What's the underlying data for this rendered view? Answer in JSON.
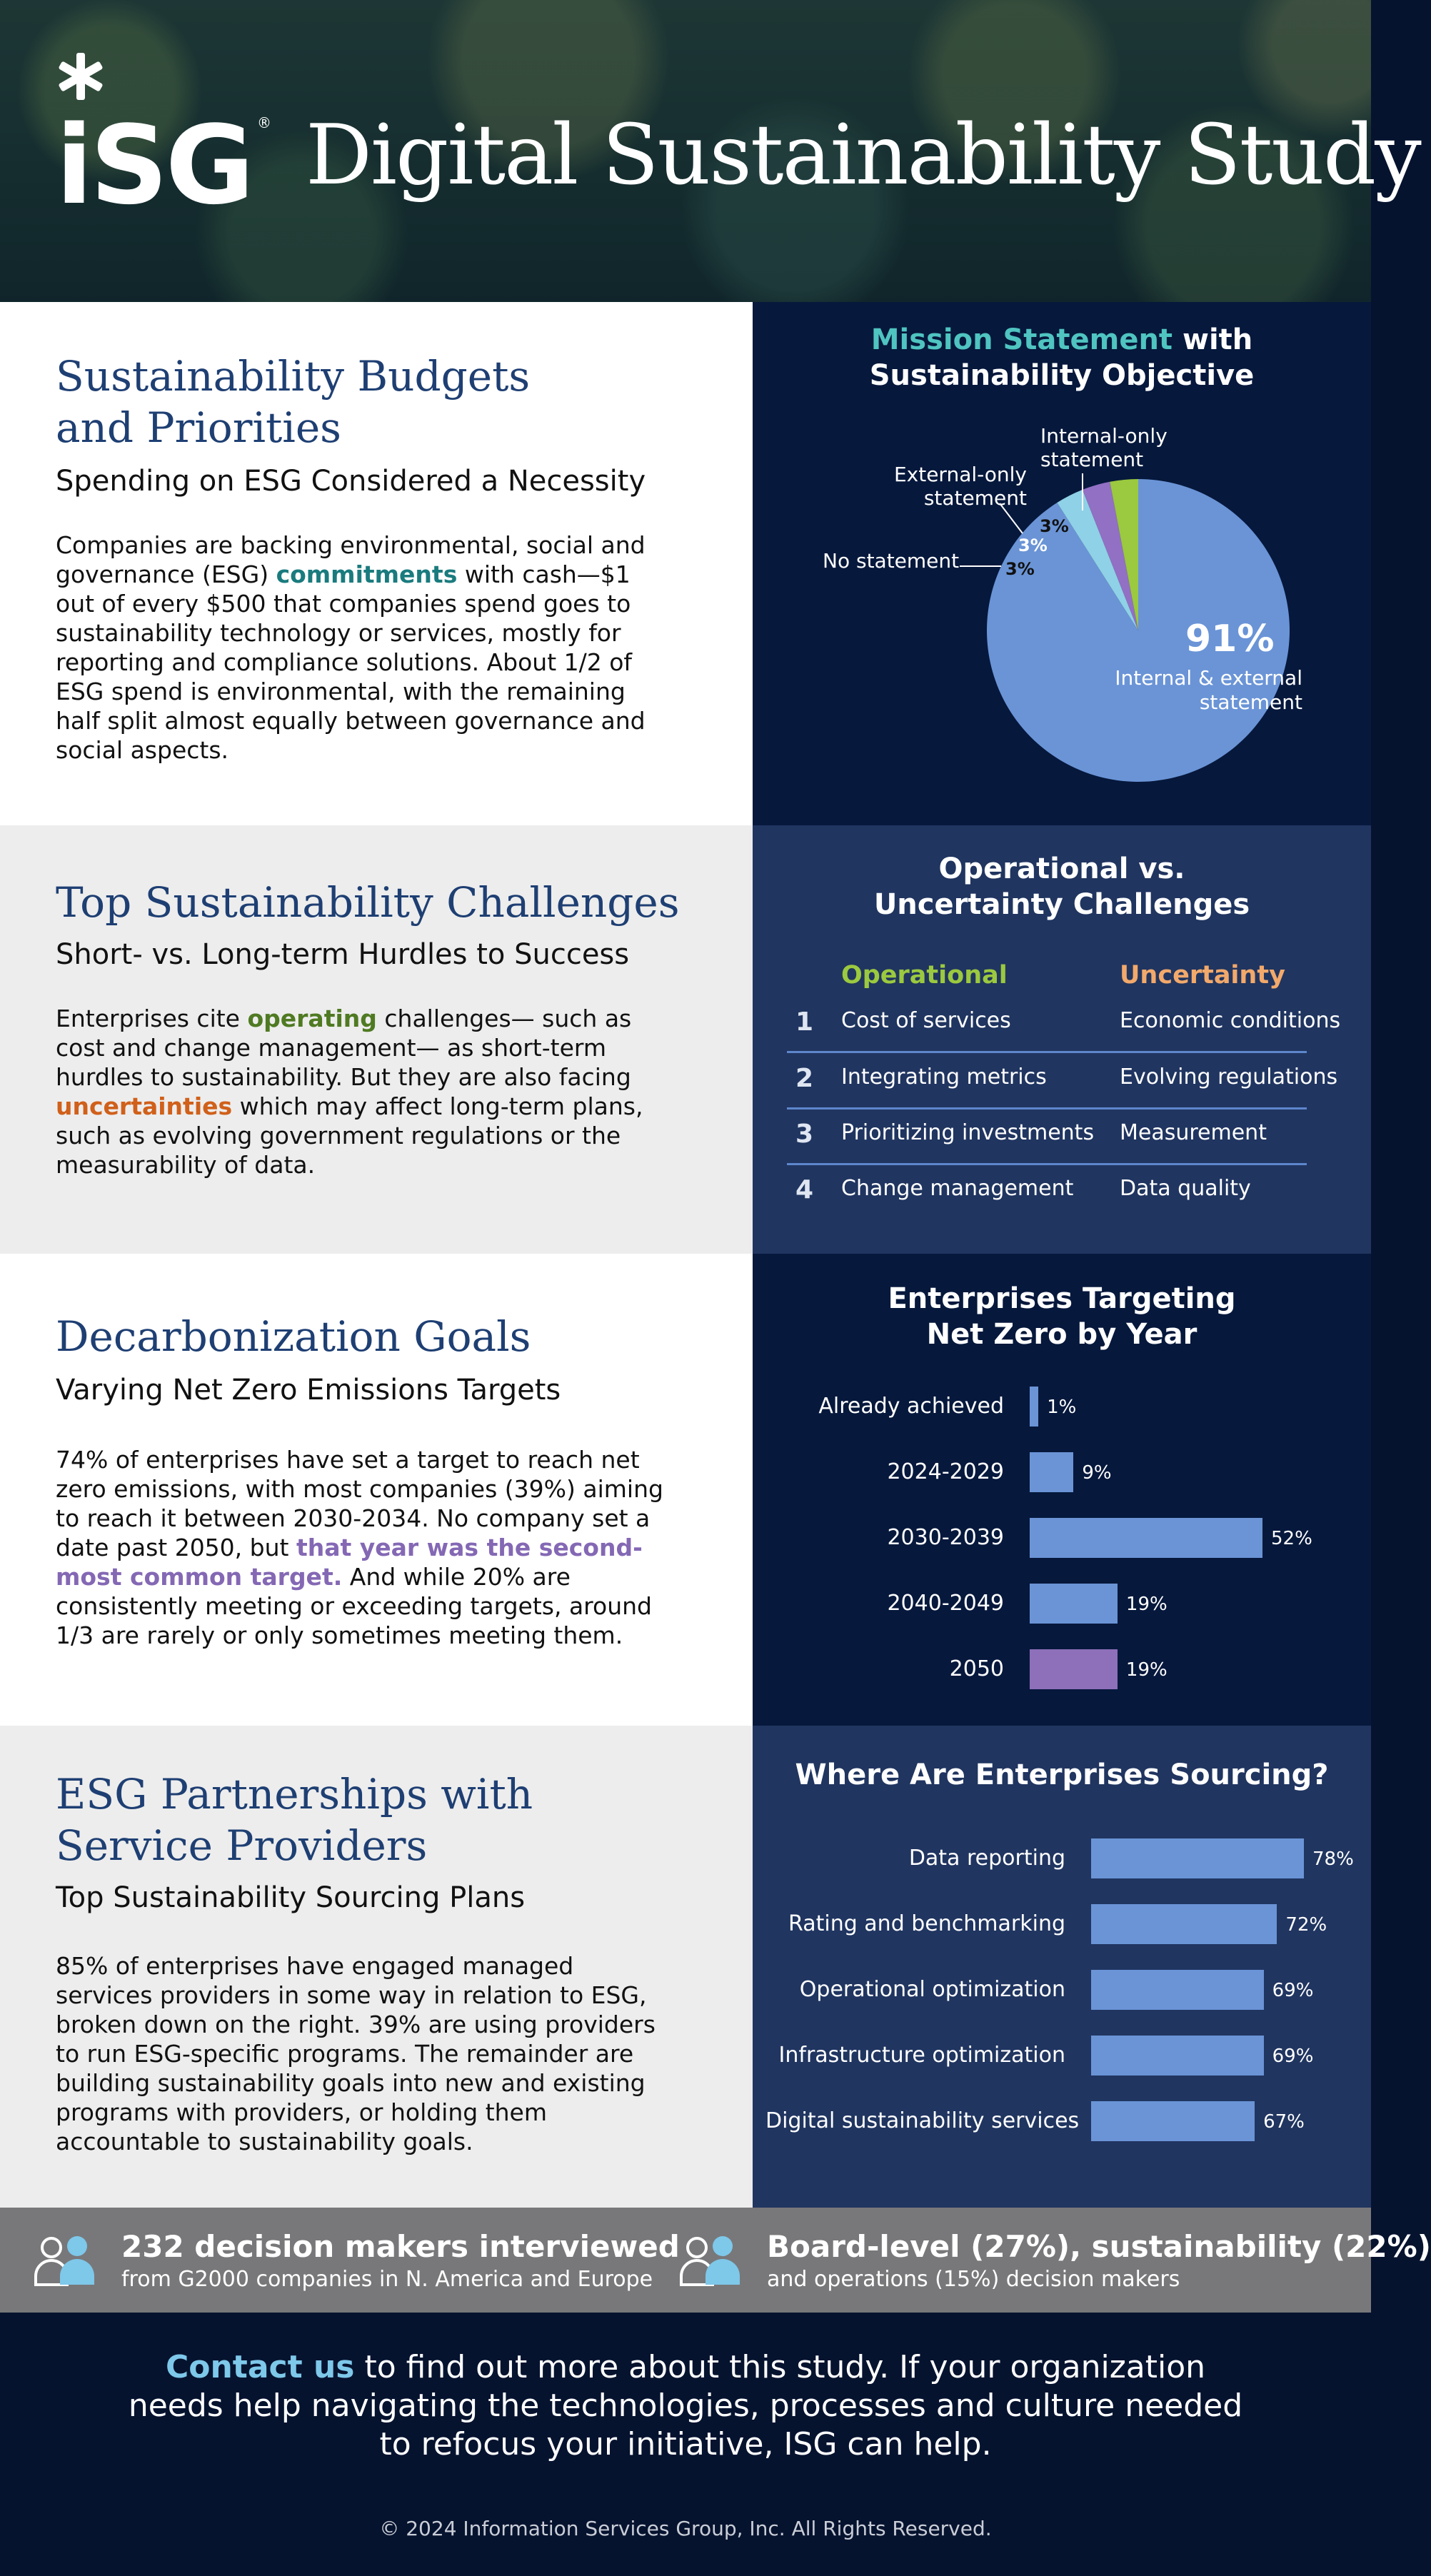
{
  "header": {
    "logo_text": "iSG",
    "title": "Digital Sustainability Study"
  },
  "section1": {
    "title_line1": "Sustainability Budgets",
    "title_line2": "and Priorities",
    "subtitle": "Spending on ESG Considered a Necessity",
    "body_pre": "Companies are backing environmental, social and governance (ESG) ",
    "body_highlight": "commitments",
    "body_post": " with cash—$1 out of every $500 that companies spend goes to sustainability technology or services, mostly for reporting and compliance solutions. About 1/2 of ESG spend is environmental, with the remaining half split almost equally between governance and social aspects.",
    "panel_title_highlight": "Mission Statement",
    "panel_title_rest": " with",
    "panel_title_line2": "Sustainability Objective",
    "chart_data": {
      "type": "pie",
      "title": "Mission Statement with Sustainability Objective",
      "slices": [
        {
          "label": "Internal & external statement",
          "value": 91,
          "display": "91%",
          "color": "#6a94d6"
        },
        {
          "label": "Internal-only statement",
          "value": 3,
          "display": "3%",
          "color": "#9bc93f"
        },
        {
          "label": "External-only statement",
          "value": 3,
          "display": "3%",
          "color": "#9270c4"
        },
        {
          "label": "No statement",
          "value": 3,
          "display": "3%",
          "color": "#8fd1e6"
        }
      ],
      "labels": {
        "internal_only_1": "Internal-only",
        "internal_only_2": "statement",
        "external_only_1": "External-only",
        "external_only_2": "statement",
        "no_statement": "No statement",
        "big_1": "Internal & external",
        "big_2": "statement"
      }
    }
  },
  "section2": {
    "title": "Top Sustainability Challenges",
    "subtitle": "Short- vs. Long-term Hurdles to Success",
    "body_pre": "Enterprises cite ",
    "body_hl1": "operating",
    "body_mid": " challenges— such as cost and change management— as short-term hurdles to sustainability. But they are also facing ",
    "body_hl2": "uncertainties",
    "body_post": " which may affect long-term plans, such as evolving government regulations or the measurability of data.",
    "panel_title_line1": "Operational vs.",
    "panel_title_line2": "Uncertainty Challenges",
    "chart_data": {
      "type": "table",
      "columns": [
        "Operational",
        "Uncertainty"
      ],
      "rows": [
        {
          "rank": "1",
          "operational": "Cost of services",
          "uncertainty": "Economic conditions"
        },
        {
          "rank": "2",
          "operational": "Integrating metrics",
          "uncertainty": "Evolving regulations"
        },
        {
          "rank": "3",
          "operational": "Prioritizing investments",
          "uncertainty": "Measurement"
        },
        {
          "rank": "4",
          "operational": "Change management",
          "uncertainty": "Data quality"
        }
      ]
    },
    "colors": {
      "operational": "#9bc93f",
      "uncertainty": "#f2a96b"
    }
  },
  "section3": {
    "title": "Decarbonization Goals",
    "subtitle": "Varying Net Zero Emissions Targets",
    "body_pre": "74% of enterprises have set a target to reach net zero emissions, with most companies (39%) aiming to reach it between 2030-2034. No company set a date past 2050, but ",
    "body_highlight": "that year was the second-most common target.",
    "body_post": " And while 20% are consistently meeting or exceeding targets, around 1/3 are rarely or only sometimes meeting them.",
    "panel_title_line1": "Enterprises Targeting",
    "panel_title_line2": "Net Zero by Year",
    "chart_data": {
      "type": "bar",
      "orientation": "horizontal",
      "title": "Enterprises Targeting Net Zero by Year",
      "categories": [
        "Already achieved",
        "2024-2029",
        "2030-2039",
        "2040-2049",
        "2050"
      ],
      "values": [
        1,
        9,
        52,
        19,
        19
      ],
      "value_labels": [
        "1%",
        "9%",
        "52%",
        "19%",
        "19%"
      ],
      "colors": [
        "#6a94d6",
        "#6a94d6",
        "#6a94d6",
        "#6a94d6",
        "#8e6fba"
      ],
      "xlim": [
        0,
        52
      ]
    }
  },
  "section4": {
    "title_line1": "ESG Partnerships with",
    "title_line2": "Service Providers",
    "subtitle": "Top Sustainability Sourcing Plans",
    "body": "85% of enterprises have engaged managed services providers in some way in relation to ESG, broken down on the right. 39% are using providers to run ESG-specific programs. The remainder are building sustainability goals into new and existing programs with providers, or holding them accountable to sustainability goals.",
    "panel_title": "Where Are Enterprises Sourcing?",
    "chart_data": {
      "type": "bar",
      "orientation": "horizontal",
      "title": "Where Are Enterprises Sourcing?",
      "categories": [
        "Data reporting",
        "Rating and benchmarking",
        "Operational optimization",
        "Infrastructure optimization",
        "Digital sustainability services"
      ],
      "values": [
        78,
        72,
        69,
        69,
        67
      ],
      "value_labels": [
        "78%",
        "72%",
        "69%",
        "69%",
        "67%"
      ],
      "colors": [
        "#6a94d6",
        "#6a94d6",
        "#6a94d6",
        "#6a94d6",
        "#6a94d6"
      ],
      "xlim": [
        40,
        78
      ]
    }
  },
  "stats": [
    {
      "title": "232 decision makers interviewed",
      "subtitle": "from G2000 companies in N. America and Europe"
    },
    {
      "title": "Board-level (27%), sustainability (22%)",
      "subtitle": "and operations (15%) decision makers"
    }
  ],
  "footer": {
    "cta_link": "Contact us",
    "cta_line1_rest": " to find out more about this study. If your organization",
    "cta_line2": "needs help navigating the technologies, processes and culture needed",
    "cta_line3": "to refocus your initiative, ISG can help.",
    "copyright": "© 2024 Information Services Group, Inc. All Rights Reserved."
  }
}
